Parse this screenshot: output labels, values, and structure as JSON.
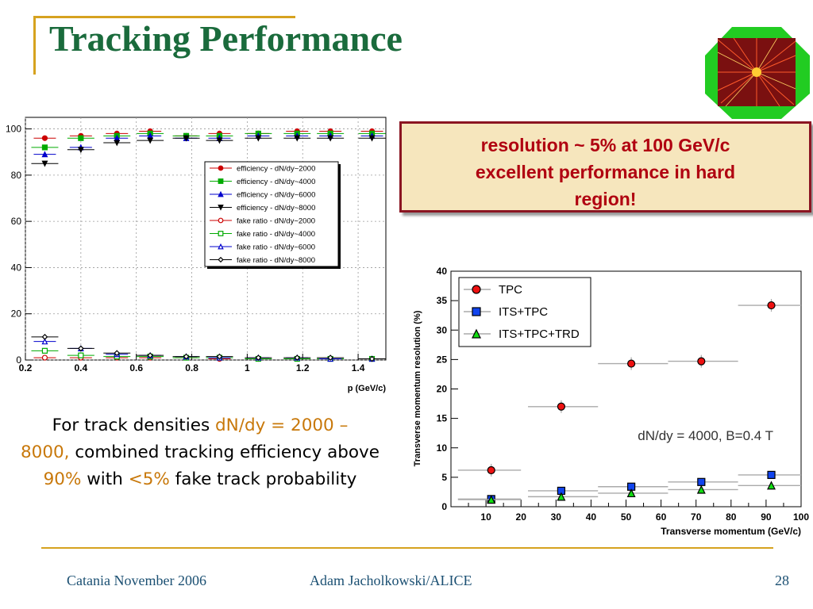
{
  "title": "Tracking Performance",
  "callout": {
    "line1": "resolution ~ 5% at 100 GeV/c",
    "line2": "excellent performance in hard",
    "line3": "region!"
  },
  "description": {
    "p1": "For track densities ",
    "h1": "dN/dy = 2000 –",
    "h2": "8000,",
    "p2": " combined tracking   efficiency above ",
    "h3": "90%",
    "p3": "  with ",
    "h4": "<5%",
    "p4": " fake track probability",
    "highlight_color": "#c8780a"
  },
  "footer": {
    "left": "Catania November 2006",
    "center": "Adam Jacholkowski/ALICE",
    "right": "28"
  },
  "chart_data": [
    {
      "type": "scatter",
      "xlabel": "p (GeV/c)",
      "ylabel": "",
      "xlim": [
        0.2,
        1.5
      ],
      "ylim": [
        0,
        105
      ],
      "xticks": [
        "0.2",
        "0.4",
        "0.6",
        "0.8",
        "1",
        "1.2",
        "1.4"
      ],
      "yticks": [
        "0",
        "20",
        "40",
        "60",
        "80",
        "100"
      ],
      "grid": true,
      "legend_position": "center-right",
      "x": [
        0.27,
        0.4,
        0.53,
        0.65,
        0.78,
        0.9,
        1.04,
        1.18,
        1.3,
        1.45
      ],
      "series": [
        {
          "name": "efficiency - dN/dy~2000",
          "marker": "circle-filled",
          "color": "#cc0000",
          "values": [
            96,
            97,
            98,
            99,
            97,
            98,
            98,
            99,
            99,
            99
          ]
        },
        {
          "name": "efficiency - dN/dy~4000",
          "marker": "square-filled",
          "color": "#00aa00",
          "values": [
            92,
            96,
            97,
            98,
            97,
            97,
            98,
            98,
            98,
            98
          ]
        },
        {
          "name": "efficiency - dN/dy~6000",
          "marker": "triangle-up-filled",
          "color": "#0000cc",
          "values": [
            89,
            92,
            96,
            97,
            96,
            96,
            97,
            97,
            97,
            97
          ]
        },
        {
          "name": "efficiency - dN/dy~8000",
          "marker": "triangle-down-filled",
          "color": "#000000",
          "values": [
            85,
            91,
            94,
            95,
            96,
            95,
            96,
            96,
            96,
            96
          ]
        },
        {
          "name": "fake ratio - dN/dy~2000",
          "marker": "circle-open",
          "color": "#cc0000",
          "values": [
            1,
            1,
            1,
            1,
            1,
            0.5,
            0.5,
            0.5,
            0.5,
            0.5
          ]
        },
        {
          "name": "fake ratio - dN/dy~4000",
          "marker": "square-open",
          "color": "#00aa00",
          "values": [
            4,
            2,
            1.5,
            1.5,
            1,
            1,
            0.5,
            0.5,
            0.5,
            0.5
          ]
        },
        {
          "name": "fake ratio - dN/dy~6000",
          "marker": "triangle-up-open",
          "color": "#0000cc",
          "values": [
            8,
            5,
            2.5,
            2,
            1.5,
            1,
            1,
            1,
            0.5,
            0.5
          ]
        },
        {
          "name": "fake ratio - dN/dy~8000",
          "marker": "diamond-open",
          "color": "#000000",
          "values": [
            10,
            5,
            3,
            2,
            1.5,
            1.5,
            1,
            1,
            1,
            0.5
          ]
        }
      ]
    },
    {
      "type": "scatter",
      "title": "",
      "xlabel": "Transverse momentum (GeV/c)",
      "ylabel": "Transverse momentum resolution (%)",
      "xlim": [
        0,
        100
      ],
      "ylim": [
        0,
        40
      ],
      "xticks": [
        "10",
        "20",
        "30",
        "40",
        "50",
        "60",
        "70",
        "80",
        "90",
        "100"
      ],
      "yticks": [
        "0",
        "5",
        "10",
        "15",
        "20",
        "25",
        "30",
        "35",
        "40"
      ],
      "grid": false,
      "legend_position": "top-left",
      "annotation": "dN/dy = 4000, B=0.4 T",
      "x": [
        11.5,
        31.5,
        51.5,
        71.5,
        91.5
      ],
      "x_err": [
        [
          2,
          20
        ],
        [
          22,
          42
        ],
        [
          42,
          62
        ],
        [
          62,
          82
        ],
        [
          82,
          102
        ]
      ],
      "series": [
        {
          "name": "TPC",
          "marker": "circle",
          "color": "#ee1111",
          "values": [
            6.2,
            17,
            24.3,
            24.7,
            34.2
          ]
        },
        {
          "name": "ITS+TPC",
          "marker": "square",
          "color": "#1144ee",
          "values": [
            1.3,
            2.7,
            3.4,
            4.2,
            5.4
          ]
        },
        {
          "name": "ITS+TPC+TRD",
          "marker": "triangle",
          "color": "#11dd11",
          "values": [
            1.2,
            1.7,
            2.3,
            2.9,
            3.6
          ]
        }
      ]
    }
  ]
}
